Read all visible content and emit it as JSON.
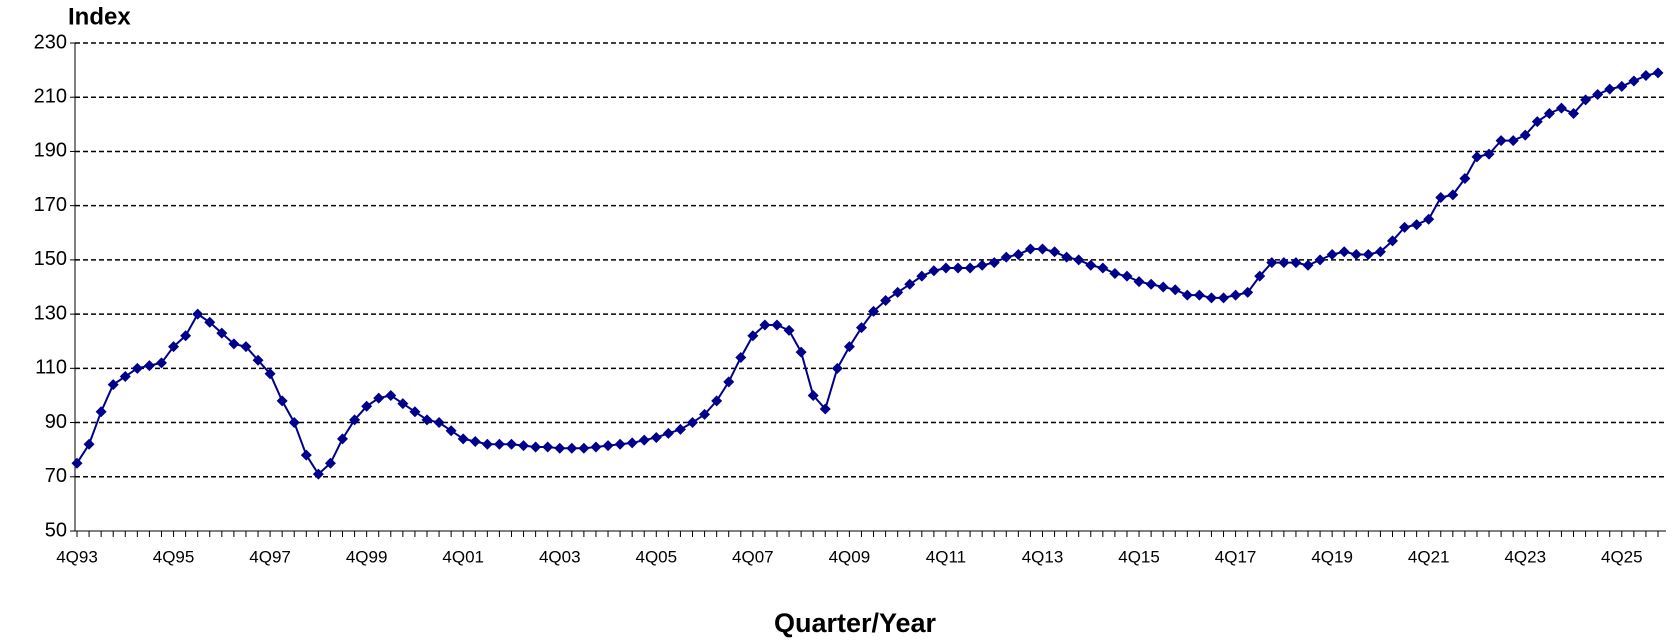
{
  "chart_data": {
    "type": "line",
    "y_label": "Index",
    "x_label": "Quarter/Year",
    "categories": [
      "4Q93",
      null,
      null,
      null,
      null,
      null,
      null,
      null,
      "4Q95",
      null,
      null,
      null,
      null,
      null,
      null,
      null,
      "4Q97",
      null,
      null,
      null,
      null,
      null,
      null,
      null,
      "4Q99",
      null,
      null,
      null,
      null,
      null,
      null,
      null,
      "4Q01",
      null,
      null,
      null,
      null,
      null,
      null,
      null,
      "4Q03",
      null,
      null,
      null,
      null,
      null,
      null,
      null,
      "4Q05",
      null,
      null,
      null,
      null,
      null,
      null,
      null,
      "4Q07",
      null,
      null,
      null,
      null,
      null,
      null,
      null,
      "4Q09",
      null,
      null,
      null,
      null,
      null,
      null,
      null,
      "4Q11",
      null,
      null,
      null,
      null,
      null,
      null,
      null,
      "4Q13",
      null,
      null,
      null,
      null,
      null,
      null,
      null,
      "4Q15",
      null,
      null,
      null,
      null,
      null,
      null,
      null,
      "4Q17",
      null,
      null,
      null,
      null,
      null,
      null,
      null,
      "4Q19",
      null,
      null,
      null,
      null,
      null,
      null,
      null,
      "4Q21",
      null,
      null,
      null,
      null,
      null,
      null,
      null,
      "4Q23",
      null,
      null,
      null,
      null,
      null,
      null,
      null,
      "4Q25",
      null,
      null,
      null
    ],
    "series": [
      {
        "color": "#00008b",
        "values": [
          75,
          82,
          94,
          104,
          107,
          110,
          111,
          112,
          118,
          122,
          130,
          127,
          123,
          119,
          118,
          113,
          108,
          98,
          90,
          78,
          71,
          75,
          84,
          91,
          96,
          99,
          100,
          97,
          94,
          91,
          90,
          87,
          84,
          83,
          82,
          82,
          82,
          81.5,
          81,
          81,
          80.5,
          80.5,
          80.5,
          81,
          81.5,
          82,
          82.5,
          83.5,
          84.5,
          86,
          87.5,
          90,
          93,
          98,
          105,
          114,
          122,
          126,
          126,
          124,
          116,
          100,
          95,
          110,
          118,
          125,
          131,
          135,
          138,
          141,
          144,
          146,
          147,
          147,
          147,
          148,
          149,
          151,
          152,
          154,
          154,
          153,
          151,
          150,
          148,
          147,
          145,
          144,
          142,
          141,
          140,
          139,
          137,
          137,
          136,
          136,
          137,
          138,
          144,
          149,
          149,
          149,
          148,
          150,
          152,
          153,
          152,
          152,
          153,
          157,
          162,
          163,
          165,
          173,
          174,
          180,
          188,
          189,
          194,
          194,
          196,
          201,
          204,
          206,
          204,
          209,
          211,
          213,
          214,
          216,
          218,
          219
        ]
      }
    ],
    "ylim": [
      50,
      230
    ],
    "yticks": [
      50,
      70,
      90,
      110,
      130,
      150,
      170,
      190,
      210,
      230
    ],
    "grid": true
  }
}
